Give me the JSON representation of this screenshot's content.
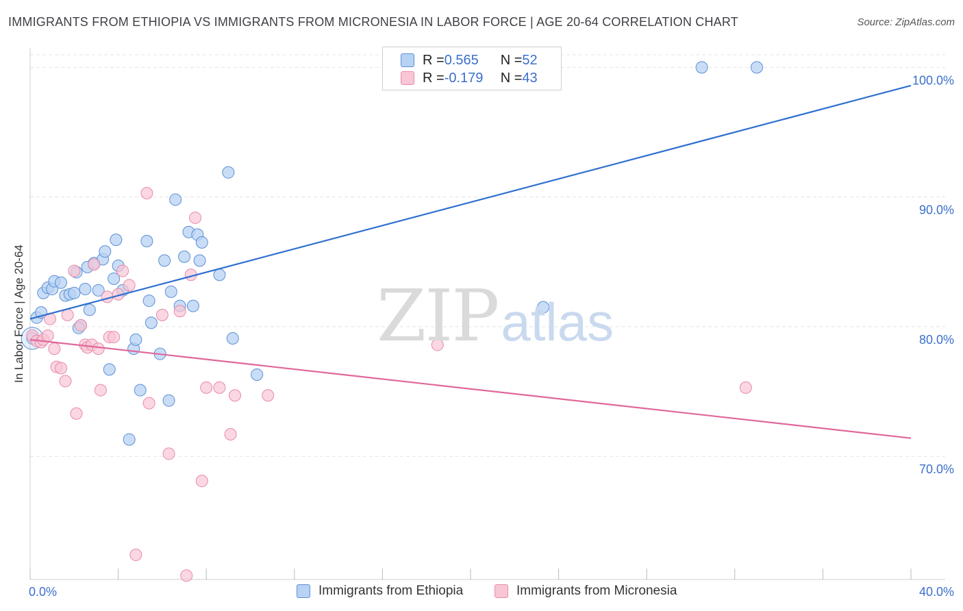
{
  "header": {
    "title": "IMMIGRANTS FROM ETHIOPIA VS IMMIGRANTS FROM MICRONESIA IN LABOR FORCE | AGE 20-64 CORRELATION CHART",
    "source": "Source: ZipAtlas.com"
  },
  "watermark": {
    "part1": "ZIP",
    "part2": "atlas"
  },
  "legend": {
    "rows": [
      {
        "r_label": "R = ",
        "r_value": "0.565",
        "n_label": "N = ",
        "n_value": "52"
      },
      {
        "r_label": "R = ",
        "r_value": "-0.179",
        "n_label": "N = ",
        "n_value": "43"
      }
    ]
  },
  "colors": {
    "ethiopia_fill": "#b7d2f3",
    "ethiopia_stroke": "#5b8fd6",
    "ethiopia_line": "#2f6fd0",
    "micronesia_fill": "#f8c6d5",
    "micronesia_stroke": "#e88aa8",
    "micronesia_line": "#e0679a",
    "tick_label": "#3b6fcc",
    "grid": "#e4e4e4"
  },
  "chart_data": {
    "type": "scatter",
    "title": "IMMIGRANTS FROM ETHIOPIA VS IMMIGRANTS FROM MICRONESIA IN LABOR FORCE | AGE 20-64 CORRELATION CHART",
    "xlabel": "",
    "ylabel": "In Labor Force | Age 20-64",
    "xlim": [
      0,
      40
    ],
    "ylim": [
      60.5,
      101.5
    ],
    "x_tick_labels": {
      "left": "0.0%",
      "right": "40.0%"
    },
    "y_ticks": [
      {
        "value": 70,
        "label": "70.0%"
      },
      {
        "value": 80,
        "label": "80.0%"
      },
      {
        "value": 90,
        "label": "90.0%"
      },
      {
        "value": 100,
        "label": "100.0%"
      }
    ],
    "series": [
      {
        "name": "Immigrants from Ethiopia",
        "R": 0.565,
        "N": 52,
        "trend": {
          "x": [
            0,
            40
          ],
          "y": [
            80.6,
            98.6
          ]
        },
        "points": [
          [
            0.1,
            79.1
          ],
          [
            0.3,
            80.7
          ],
          [
            0.5,
            81.1
          ],
          [
            0.6,
            82.6
          ],
          [
            0.8,
            83.0
          ],
          [
            1.0,
            82.9
          ],
          [
            1.1,
            83.5
          ],
          [
            1.4,
            83.4
          ],
          [
            1.6,
            82.4
          ],
          [
            1.8,
            82.5
          ],
          [
            2.0,
            82.6
          ],
          [
            2.1,
            84.2
          ],
          [
            2.3,
            80.1
          ],
          [
            2.5,
            82.9
          ],
          [
            2.6,
            84.6
          ],
          [
            2.7,
            81.3
          ],
          [
            2.9,
            84.9
          ],
          [
            3.1,
            82.8
          ],
          [
            3.3,
            85.2
          ],
          [
            3.4,
            85.8
          ],
          [
            3.8,
            83.7
          ],
          [
            3.9,
            86.7
          ],
          [
            4.0,
            84.7
          ],
          [
            4.2,
            82.8
          ],
          [
            4.5,
            71.3
          ],
          [
            4.7,
            78.3
          ],
          [
            4.8,
            79.0
          ],
          [
            5.0,
            75.1
          ],
          [
            5.3,
            86.6
          ],
          [
            5.4,
            82.0
          ],
          [
            5.5,
            80.3
          ],
          [
            5.9,
            77.9
          ],
          [
            6.1,
            85.1
          ],
          [
            6.3,
            74.3
          ],
          [
            6.4,
            82.7
          ],
          [
            6.6,
            89.8
          ],
          [
            6.8,
            81.6
          ],
          [
            7.0,
            85.4
          ],
          [
            7.2,
            87.3
          ],
          [
            7.4,
            81.6
          ],
          [
            7.6,
            87.1
          ],
          [
            7.7,
            85.1
          ],
          [
            7.8,
            86.5
          ],
          [
            8.6,
            84.0
          ],
          [
            9.0,
            91.9
          ],
          [
            9.2,
            79.1
          ],
          [
            10.3,
            76.3
          ],
          [
            23.3,
            81.5
          ],
          [
            30.5,
            100.0
          ],
          [
            33.0,
            100.0
          ],
          [
            3.6,
            76.7
          ],
          [
            2.2,
            79.9
          ]
        ]
      },
      {
        "name": "Immigrants from Micronesia",
        "R": -0.179,
        "N": 43,
        "trend": {
          "x": [
            0,
            40
          ],
          "y": [
            79.0,
            71.4
          ]
        },
        "points": [
          [
            0.1,
            79.3
          ],
          [
            0.3,
            78.9
          ],
          [
            0.5,
            78.8
          ],
          [
            0.6,
            79.0
          ],
          [
            0.8,
            79.3
          ],
          [
            0.9,
            80.6
          ],
          [
            1.1,
            78.3
          ],
          [
            1.2,
            76.9
          ],
          [
            1.4,
            76.8
          ],
          [
            1.6,
            75.8
          ],
          [
            1.7,
            80.9
          ],
          [
            2.0,
            84.3
          ],
          [
            2.1,
            73.3
          ],
          [
            2.3,
            80.1
          ],
          [
            2.5,
            78.6
          ],
          [
            2.6,
            78.4
          ],
          [
            2.8,
            78.6
          ],
          [
            2.9,
            84.8
          ],
          [
            3.1,
            78.3
          ],
          [
            3.2,
            75.1
          ],
          [
            3.5,
            82.3
          ],
          [
            3.6,
            79.2
          ],
          [
            3.8,
            79.2
          ],
          [
            4.0,
            82.5
          ],
          [
            4.2,
            84.3
          ],
          [
            4.5,
            83.2
          ],
          [
            4.8,
            62.4
          ],
          [
            5.3,
            90.3
          ],
          [
            5.4,
            74.1
          ],
          [
            6.0,
            80.9
          ],
          [
            6.3,
            70.2
          ],
          [
            6.8,
            81.2
          ],
          [
            7.1,
            60.8
          ],
          [
            7.3,
            84.0
          ],
          [
            7.5,
            88.4
          ],
          [
            7.8,
            68.1
          ],
          [
            8.0,
            75.3
          ],
          [
            8.6,
            75.3
          ],
          [
            9.1,
            71.7
          ],
          [
            9.3,
            74.7
          ],
          [
            10.8,
            74.7
          ],
          [
            18.5,
            78.6
          ],
          [
            32.5,
            75.3
          ]
        ]
      }
    ]
  },
  "bottom_legend": {
    "items": [
      {
        "label": "Immigrants from Ethiopia"
      },
      {
        "label": "Immigrants from Micronesia"
      }
    ]
  }
}
